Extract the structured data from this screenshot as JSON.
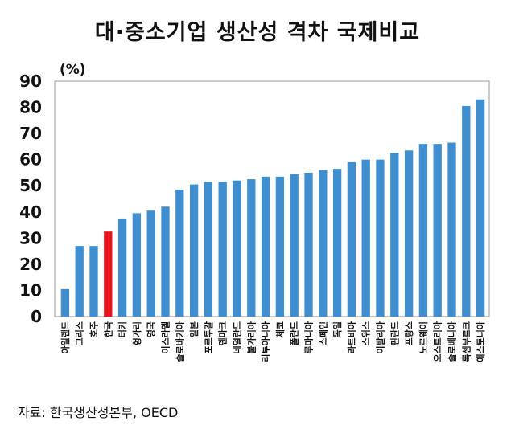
{
  "chart_data": {
    "type": "bar",
    "title": "대·중소기업 생산성 격차 국제비교",
    "ylabel": "(%)",
    "xlabel": "",
    "ylim": [
      0,
      90
    ],
    "yticks": [
      0,
      10,
      20,
      30,
      40,
      50,
      60,
      70,
      80,
      90
    ],
    "categories": [
      "아일랜드",
      "그리스",
      "호주",
      "한국",
      "터키",
      "헝가리",
      "영국",
      "이스라엘",
      "슬로바키아",
      "일본",
      "포르투갈",
      "덴마크",
      "네덜란드",
      "불가리아",
      "리투아니아",
      "체코",
      "폴란드",
      "루마니아",
      "스페인",
      "독일",
      "라트비아",
      "스위스",
      "이탈리아",
      "핀란드",
      "프랑스",
      "노르웨이",
      "오스트리아",
      "슬로베니아",
      "룩셈부르크",
      "에스토니아"
    ],
    "values": [
      10.5,
      27,
      27,
      32.5,
      37.5,
      39.5,
      40.5,
      42,
      48.5,
      50.5,
      51.5,
      51.5,
      52,
      52.5,
      53.5,
      53.5,
      54.5,
      55,
      56,
      56.5,
      59,
      60,
      60,
      62.5,
      63.5,
      66,
      66,
      66.5,
      80.5,
      83
    ],
    "highlight_category": "한국",
    "colors": {
      "bar": "#3f8fd0",
      "highlight": "#e8141b"
    }
  },
  "source": "자료: 한국생산성본부, OECD"
}
